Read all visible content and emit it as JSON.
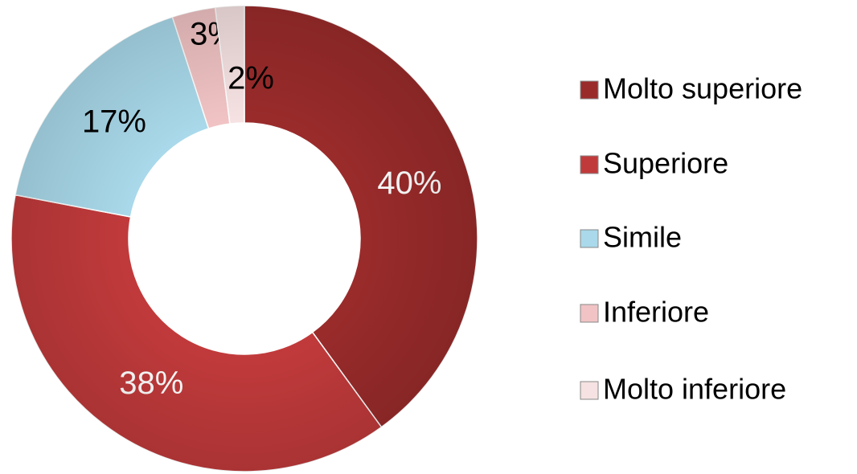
{
  "chart_data": {
    "type": "donut",
    "categories": [
      "Molto superiore",
      "Superiore",
      "Simile",
      "Inferiore",
      "Molto inferiore"
    ],
    "values": [
      40,
      38,
      17,
      3,
      2
    ],
    "value_labels": [
      "40%",
      "38%",
      "17%",
      "3%",
      "2%"
    ],
    "colors": [
      "#9a2b2b",
      "#c13a3b",
      "#a9d9ea",
      "#f1c3c4",
      "#f6e2e2"
    ],
    "legend": "right"
  }
}
